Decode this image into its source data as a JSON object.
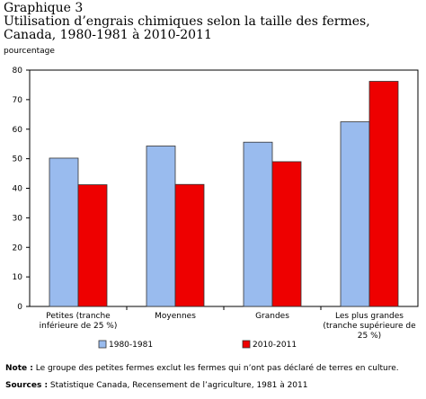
{
  "chart_data": {
    "type": "bar",
    "title": [
      "Graphique 3",
      "Utilisation d’engrais chimiques selon la taille des fermes,",
      "Canada, 1980-1981 à 2010-2011"
    ],
    "y_label": "pourcentage",
    "categories": [
      "Petites (tranche inférieure de 25 %)",
      "Moyennes",
      "Grandes",
      "Les plus grandes (tranche supérieure de 25 %)"
    ],
    "series": [
      {
        "name": "1980-1981",
        "color": "#99bbee",
        "values": [
          50.2,
          54.3,
          55.6,
          62.5
        ]
      },
      {
        "name": "2010-2011",
        "color": "#ee0000",
        "values": [
          41.2,
          41.3,
          49.0,
          76.2
        ]
      }
    ],
    "ylim": [
      0,
      80
    ],
    "yticks": [
      0,
      10,
      20,
      30,
      40,
      50,
      60,
      70,
      80
    ],
    "notes": [
      {
        "label": "Note :",
        "text": " Le groupe des petites fermes exclut les fermes qui n’ont pas déclaré de terres en culture."
      },
      {
        "label": "Sources :",
        "text": " Statistique Canada, Recensement de l’agriculture, 1981 à 2011"
      }
    ]
  }
}
